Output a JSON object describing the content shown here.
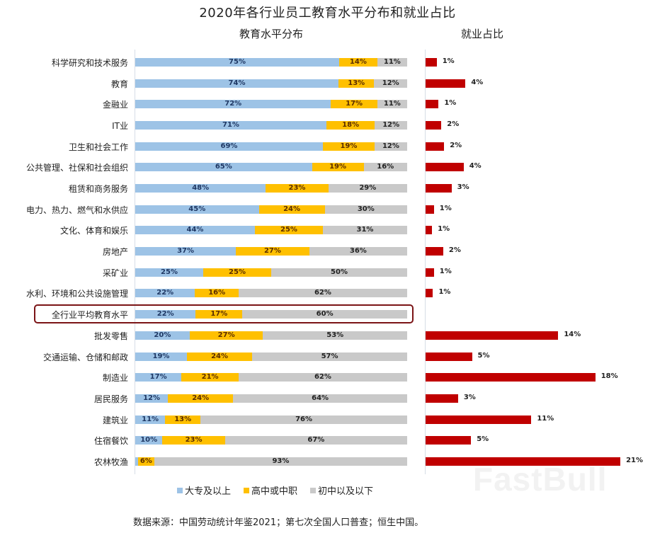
{
  "title": "2020年各行业员工教育水平分布和就业占比",
  "subtitle_left": "教育水平分布",
  "subtitle_right": "就业占比",
  "legend": [
    {
      "label": "大专及以上",
      "color": "#9dc3e6"
    },
    {
      "label": "高中或中职",
      "color": "#ffc000"
    },
    {
      "label": "初中以及以下",
      "color": "#c9c9c9"
    }
  ],
  "footer": "数据来源：中国劳动统计年鉴2021；第七次全国人口普查；恒生中国。",
  "watermark": "FastBull",
  "colors": {
    "college": "#9dc3e6",
    "high_school": "#ffc000",
    "middle_or_below": "#c9c9c9",
    "employment": "#c00000",
    "highlight_border": "#7b1416"
  },
  "chart_data": [
    {
      "type": "bar",
      "orientation": "horizontal",
      "stacked": true,
      "title": "教育水平分布",
      "categories": [
        "科学研究和技术服务",
        "教育",
        "金融业",
        "IT业",
        "卫生和社会工作",
        "公共管理、社保和社会组织",
        "租赁和商务服务",
        "电力、热力、燃气和水供应",
        "文化、体育和娱乐",
        "房地产",
        "采矿业",
        "水利、环境和公共设施管理",
        "全行业平均教育水平",
        "批发零售",
        "交通运输、仓储和邮政",
        "制造业",
        "居民服务",
        "建筑业",
        "住宿餐饮",
        "农林牧渔"
      ],
      "series": [
        {
          "name": "大专及以上",
          "values": [
            75,
            74,
            72,
            71,
            69,
            65,
            48,
            45,
            44,
            37,
            25,
            22,
            22,
            20,
            19,
            17,
            12,
            11,
            10,
            1
          ]
        },
        {
          "name": "高中或中职",
          "values": [
            14,
            13,
            17,
            18,
            19,
            19,
            23,
            24,
            25,
            27,
            25,
            16,
            17,
            27,
            24,
            21,
            24,
            13,
            23,
            6
          ]
        },
        {
          "name": "初中以及以下",
          "values": [
            11,
            12,
            11,
            12,
            12,
            16,
            29,
            30,
            31,
            36,
            50,
            62,
            60,
            53,
            57,
            62,
            64,
            76,
            67,
            93
          ]
        }
      ],
      "data_labels": [
        [
          "75%",
          "14%",
          "11%"
        ],
        [
          "74%",
          "13%",
          "12%"
        ],
        [
          "72%",
          "17%",
          "11%"
        ],
        [
          "71%",
          "18%",
          "12%"
        ],
        [
          "69%",
          "19%",
          "12%"
        ],
        [
          "65%",
          "19%",
          "16%"
        ],
        [
          "48%",
          "23%",
          "29%"
        ],
        [
          "45%",
          "24%",
          "30%"
        ],
        [
          "44%",
          "25%",
          "31%"
        ],
        [
          "37%",
          "27%",
          "36%"
        ],
        [
          "25%",
          "25%",
          "50%"
        ],
        [
          "22%",
          "16%",
          "62%"
        ],
        [
          "22%",
          "17%",
          "60%"
        ],
        [
          "20%",
          "27%",
          "53%"
        ],
        [
          "19%",
          "24%",
          "57%"
        ],
        [
          "17%",
          "21%",
          "62%"
        ],
        [
          "12%",
          "24%",
          "64%"
        ],
        [
          "11%",
          "13%",
          "76%"
        ],
        [
          "10%",
          "23%",
          "67%"
        ],
        [
          "",
          "6%",
          "93%"
        ]
      ],
      "highlighted_category": "全行业平均教育水平",
      "xlim": [
        0,
        100
      ],
      "legend_position": "bottom"
    },
    {
      "type": "bar",
      "orientation": "horizontal",
      "title": "就业占比",
      "categories": [
        "科学研究和技术服务",
        "教育",
        "金融业",
        "IT业",
        "卫生和社会工作",
        "公共管理、社保和社会组织",
        "租赁和商务服务",
        "电力、热力、燃气和水供应",
        "文化、体育和娱乐",
        "房地产",
        "采矿业",
        "水利、环境和公共设施管理",
        "全行业平均教育水平",
        "批发零售",
        "交通运输、仓储和邮政",
        "制造业",
        "居民服务",
        "建筑业",
        "住宿餐饮",
        "农林牧渔"
      ],
      "values": [
        1,
        4,
        1,
        2,
        2,
        4,
        3,
        1,
        1,
        2,
        1,
        1,
        null,
        14,
        5,
        18,
        3,
        11,
        5,
        21
      ],
      "bar_lengths_estimated": [
        1.2,
        4.3,
        1.4,
        1.7,
        2.0,
        4.1,
        2.8,
        0.9,
        0.7,
        1.9,
        0.9,
        0.8,
        null,
        14.3,
        5.0,
        18.3,
        3.5,
        11.4,
        4.9,
        21.0
      ],
      "labels": [
        "1%",
        "4%",
        "1%",
        "2%",
        "2%",
        "4%",
        "3%",
        "1%",
        "1%",
        "2%",
        "1%",
        "1%",
        "",
        "14%",
        "5%",
        "18%",
        "3%",
        "11%",
        "5%",
        "21%"
      ],
      "xlim": [
        0,
        22
      ]
    }
  ]
}
